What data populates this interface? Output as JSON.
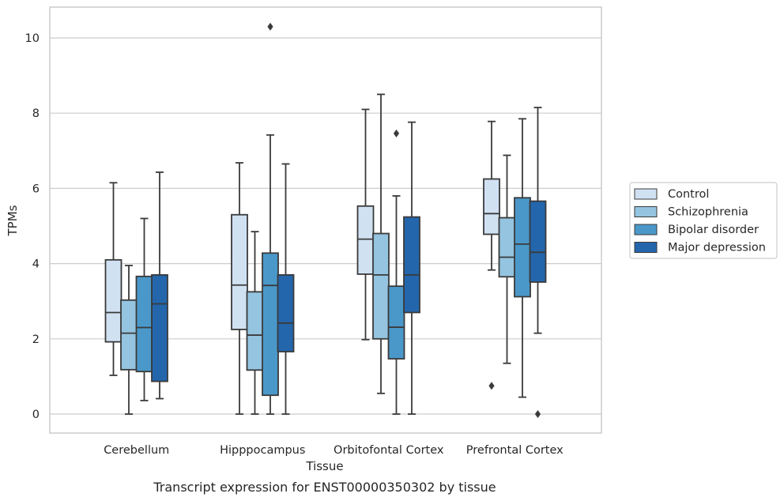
{
  "caption": "Transcript expression for ENST00000350302 by tissue",
  "chart_data": {
    "type": "boxplot",
    "xlabel": "Tissue",
    "ylabel": "TPMs",
    "ylim": [
      -0.5,
      10.8
    ],
    "yticks": [
      0,
      2,
      4,
      6,
      8,
      10
    ],
    "categories": [
      "Cerebellum",
      "Hipppocampus",
      "Orbitofontal Cortex",
      "Prefrontal Cortex"
    ],
    "legend_position": "right",
    "grid": "horizontal",
    "series": [
      {
        "name": "Control",
        "color": "#d0e1f2",
        "boxes": [
          {
            "whislo": 1.03,
            "q1": 1.92,
            "med": 2.7,
            "q3": 4.1,
            "whishi": 6.15,
            "fliers": []
          },
          {
            "whislo": 0.0,
            "q1": 2.25,
            "med": 3.43,
            "q3": 5.3,
            "whishi": 6.68,
            "fliers": []
          },
          {
            "whislo": 1.98,
            "q1": 3.72,
            "med": 4.65,
            "q3": 5.53,
            "whishi": 8.1,
            "fliers": []
          },
          {
            "whislo": 3.83,
            "q1": 4.78,
            "med": 5.33,
            "q3": 6.25,
            "whishi": 7.78,
            "fliers": [
              0.75
            ]
          }
        ]
      },
      {
        "name": "Schizophrenia",
        "color": "#94c4df",
        "boxes": [
          {
            "whislo": 0.0,
            "q1": 1.18,
            "med": 2.15,
            "q3": 3.03,
            "whishi": 3.95,
            "fliers": []
          },
          {
            "whislo": 0.0,
            "q1": 1.17,
            "med": 2.1,
            "q3": 3.25,
            "whishi": 4.85,
            "fliers": []
          },
          {
            "whislo": 0.55,
            "q1": 2.0,
            "med": 3.7,
            "q3": 4.8,
            "whishi": 8.5,
            "fliers": []
          },
          {
            "whislo": 1.35,
            "q1": 3.65,
            "med": 4.17,
            "q3": 5.22,
            "whishi": 6.88,
            "fliers": []
          }
        ]
      },
      {
        "name": "Bipolar disorder",
        "color": "#4a98c9",
        "boxes": [
          {
            "whislo": 0.36,
            "q1": 1.13,
            "med": 2.3,
            "q3": 3.66,
            "whishi": 5.2,
            "fliers": []
          },
          {
            "whislo": 0.0,
            "q1": 0.5,
            "med": 3.42,
            "q3": 4.28,
            "whishi": 7.42,
            "fliers": [
              10.3
            ]
          },
          {
            "whislo": 0.0,
            "q1": 1.47,
            "med": 2.31,
            "q3": 3.4,
            "whishi": 5.8,
            "fliers": [
              7.46
            ]
          },
          {
            "whislo": 0.45,
            "q1": 3.12,
            "med": 4.52,
            "q3": 5.75,
            "whishi": 7.85,
            "fliers": []
          }
        ]
      },
      {
        "name": "Major depression",
        "color": "#2366ac",
        "boxes": [
          {
            "whislo": 0.41,
            "q1": 0.87,
            "med": 2.93,
            "q3": 3.7,
            "whishi": 6.43,
            "fliers": []
          },
          {
            "whislo": 0.0,
            "q1": 1.66,
            "med": 2.42,
            "q3": 3.7,
            "whishi": 6.65,
            "fliers": []
          },
          {
            "whislo": 0.0,
            "q1": 2.7,
            "med": 3.7,
            "q3": 5.24,
            "whishi": 7.76,
            "fliers": []
          },
          {
            "whislo": 2.15,
            "q1": 3.51,
            "med": 4.3,
            "q3": 5.66,
            "whishi": 8.15,
            "fliers": [
              0.0
            ]
          }
        ]
      }
    ]
  }
}
